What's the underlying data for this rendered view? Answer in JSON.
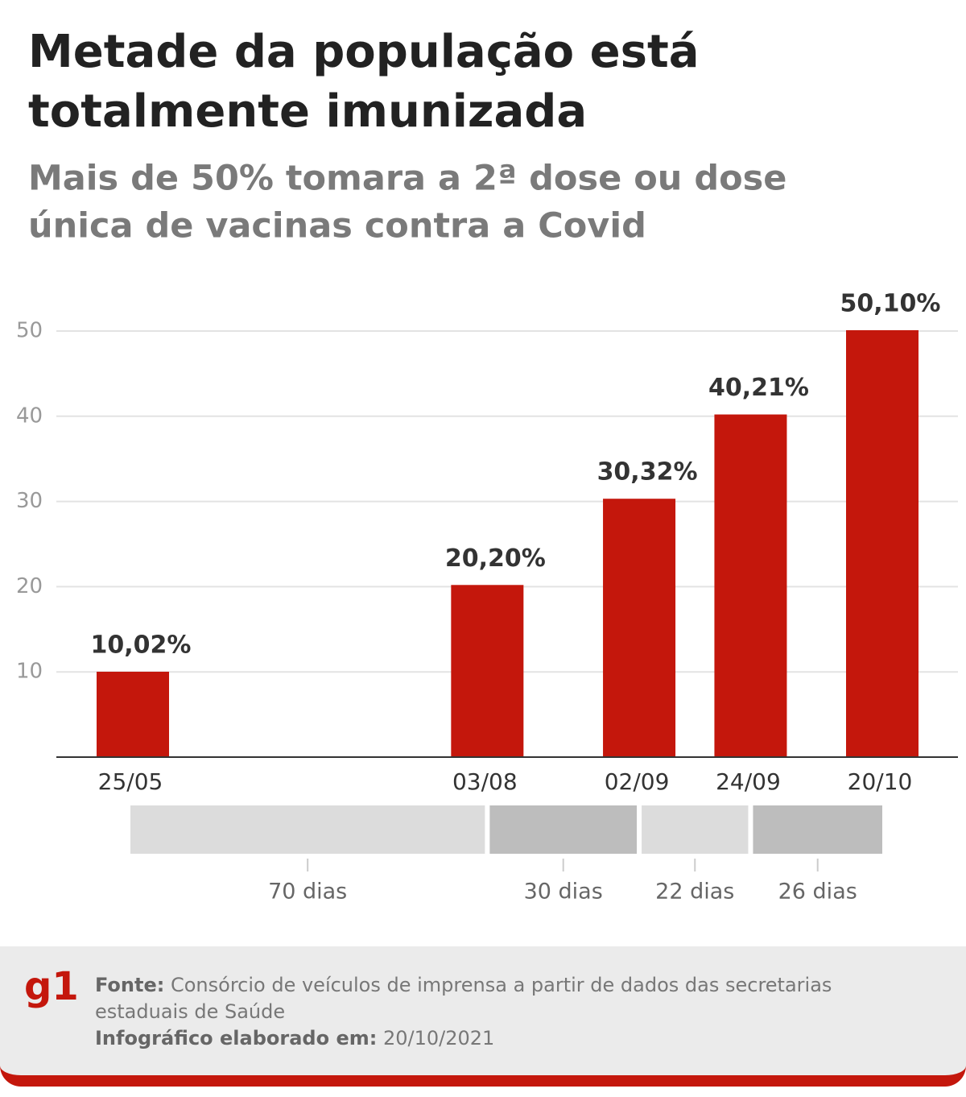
{
  "chart_data": {
    "type": "bar",
    "title": [
      "Metade da população está",
      "totalmente imunizada"
    ],
    "subtitle": [
      "Mais de 50% tomara a 2ª dose ou dose",
      "única de vacinas contra a Covid"
    ],
    "categories": [
      "25/05",
      "03/08",
      "02/09",
      "24/09",
      "20/10"
    ],
    "values": [
      10.02,
      20.2,
      30.32,
      40.21,
      50.1
    ],
    "value_labels": [
      "10,02%",
      "20,20%",
      "30,32%",
      "40,21%",
      "50,10%"
    ],
    "intervals": [
      {
        "value": 70,
        "label": "70 dias"
      },
      {
        "value": 30,
        "label": "30 dias"
      },
      {
        "value": 22,
        "label": "22 dias"
      },
      {
        "value": 26,
        "label": "26 dias"
      }
    ],
    "color": "#c4170c",
    "ylim": [
      0,
      50
    ],
    "yticks": [
      10,
      20,
      30,
      40,
      50
    ],
    "grid": true
  },
  "footer": {
    "logo": "g1",
    "source_label": "Fonte:",
    "source_text": "Consórcio de veículos de imprensa a partir de dados das secretarias estaduais de Saúde",
    "date_label": "Infográfico elaborado em:",
    "date_text": "20/10/2021"
  }
}
